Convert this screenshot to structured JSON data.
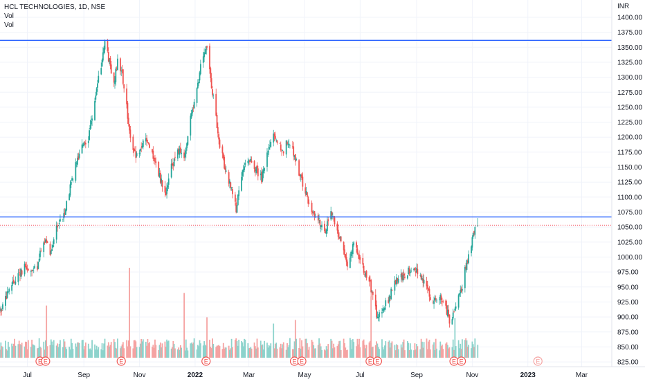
{
  "chart_data": {
    "type": "candlestick",
    "symbol": "HCL TECHNOLOGIES",
    "interval": "1D",
    "exchange": "NSE",
    "legend": [
      "HCL TECHNOLOGIES, 1D, NSE",
      "Vol",
      "Vol"
    ],
    "currency": "INR",
    "ylim": [
      817,
      1415
    ],
    "y_ticks": [
      825,
      850,
      875,
      900,
      925,
      950,
      975,
      1000,
      1025,
      1050,
      1075,
      1100,
      1125,
      1150,
      1175,
      1200,
      1225,
      1250,
      1275,
      1300,
      1325,
      1350,
      1375,
      1400
    ],
    "y_tick_labels": [
      "825.00",
      "850.00",
      "875.00",
      "900.00",
      "925.00",
      "950.00",
      "975.00",
      "1000.00",
      "1025.00",
      "1050.00",
      "1075.00",
      "1100.00",
      "1125.00",
      "1150.00",
      "1175.00",
      "1200.00",
      "1225.00",
      "1250.00",
      "1275.00",
      "1300.00",
      "1325.00",
      "1350.00",
      "1375.00",
      "1400.00"
    ],
    "x_range": [
      "2021-06-01",
      "2023-03-31"
    ],
    "x_ticks": [
      {
        "label": "Jul",
        "date": "2021-07-01",
        "bold": false
      },
      {
        "label": "Sep",
        "date": "2021-09-01",
        "bold": false
      },
      {
        "label": "Nov",
        "date": "2021-11-01",
        "bold": false
      },
      {
        "label": "2022",
        "date": "2022-01-01",
        "bold": true
      },
      {
        "label": "Mar",
        "date": "2022-03-01",
        "bold": false
      },
      {
        "label": "May",
        "date": "2022-05-01",
        "bold": false
      },
      {
        "label": "Jul",
        "date": "2022-07-01",
        "bold": false
      },
      {
        "label": "Sep",
        "date": "2022-09-01",
        "bold": false
      },
      {
        "label": "Nov",
        "date": "2022-11-01",
        "bold": false
      },
      {
        "label": "2023",
        "date": "2023-01-01",
        "bold": true
      },
      {
        "label": "Mar",
        "date": "2023-03-01",
        "bold": false
      }
    ],
    "horizontal_lines": [
      {
        "value": 1361.5,
        "label": "1361.50",
        "color": "#2962ff"
      },
      {
        "value": 1066.85,
        "label": "1066.85",
        "color": "#2962ff"
      }
    ],
    "last_price": {
      "value": 1053.25,
      "label": "1053.25",
      "color": "#f23645"
    },
    "earnings_markers": [
      {
        "date": "2021-07-15",
        "label": "E",
        "type": "past"
      },
      {
        "date": "2021-07-21",
        "label": "E",
        "type": "past"
      },
      {
        "date": "2021-10-12",
        "label": "E",
        "type": "past"
      },
      {
        "date": "2022-01-13",
        "label": "E",
        "type": "past"
      },
      {
        "date": "2022-04-20",
        "label": "E",
        "type": "past"
      },
      {
        "date": "2022-04-28",
        "label": "E",
        "type": "past"
      },
      {
        "date": "2022-07-12",
        "label": "E",
        "type": "past"
      },
      {
        "date": "2022-07-20",
        "label": "E",
        "type": "past"
      },
      {
        "date": "2022-10-12",
        "label": "E",
        "type": "past"
      },
      {
        "date": "2022-10-20",
        "label": "E",
        "type": "past"
      },
      {
        "date": "2023-01-12",
        "label": "E",
        "type": "upcoming"
      }
    ],
    "price_path": [
      [
        "2021-06-01",
        908
      ],
      [
        "2021-06-10",
        940
      ],
      [
        "2021-06-20",
        970
      ],
      [
        "2021-06-28",
        982
      ],
      [
        "2021-07-06",
        975
      ],
      [
        "2021-07-12",
        985
      ],
      [
        "2021-07-19",
        1030
      ],
      [
        "2021-07-26",
        1008
      ],
      [
        "2021-08-02",
        1050
      ],
      [
        "2021-08-09",
        1065
      ],
      [
        "2021-08-16",
        1110
      ],
      [
        "2021-08-23",
        1155
      ],
      [
        "2021-08-30",
        1185
      ],
      [
        "2021-09-06",
        1200
      ],
      [
        "2021-09-13",
        1265
      ],
      [
        "2021-09-20",
        1320
      ],
      [
        "2021-09-24",
        1362
      ],
      [
        "2021-09-28",
        1330
      ],
      [
        "2021-10-04",
        1290
      ],
      [
        "2021-10-08",
        1325
      ],
      [
        "2021-10-13",
        1305
      ],
      [
        "2021-10-18",
        1250
      ],
      [
        "2021-10-22",
        1200
      ],
      [
        "2021-10-28",
        1168
      ],
      [
        "2021-11-03",
        1185
      ],
      [
        "2021-11-10",
        1195
      ],
      [
        "2021-11-17",
        1160
      ],
      [
        "2021-11-24",
        1130
      ],
      [
        "2021-11-30",
        1105
      ],
      [
        "2021-12-06",
        1150
      ],
      [
        "2021-12-13",
        1180
      ],
      [
        "2021-12-20",
        1165
      ],
      [
        "2021-12-27",
        1230
      ],
      [
        "2022-01-03",
        1275
      ],
      [
        "2022-01-07",
        1320
      ],
      [
        "2022-01-11",
        1345
      ],
      [
        "2022-01-14",
        1352
      ],
      [
        "2022-01-17",
        1310
      ],
      [
        "2022-01-21",
        1265
      ],
      [
        "2022-01-27",
        1195
      ],
      [
        "2022-02-03",
        1145
      ],
      [
        "2022-02-10",
        1115
      ],
      [
        "2022-02-15",
        1080
      ],
      [
        "2022-02-22",
        1140
      ],
      [
        "2022-03-01",
        1165
      ],
      [
        "2022-03-08",
        1150
      ],
      [
        "2022-03-15",
        1130
      ],
      [
        "2022-03-22",
        1175
      ],
      [
        "2022-03-29",
        1205
      ],
      [
        "2022-04-04",
        1185
      ],
      [
        "2022-04-08",
        1178
      ],
      [
        "2022-04-13",
        1195
      ],
      [
        "2022-04-19",
        1175
      ],
      [
        "2022-04-25",
        1140
      ],
      [
        "2022-05-02",
        1108
      ],
      [
        "2022-05-09",
        1078
      ],
      [
        "2022-05-16",
        1065
      ],
      [
        "2022-05-23",
        1040
      ],
      [
        "2022-05-30",
        1075
      ],
      [
        "2022-06-06",
        1045
      ],
      [
        "2022-06-13",
        1008
      ],
      [
        "2022-06-17",
        990
      ],
      [
        "2022-06-24",
        1020
      ],
      [
        "2022-07-01",
        1000
      ],
      [
        "2022-07-06",
        975
      ],
      [
        "2022-07-11",
        960
      ],
      [
        "2022-07-15",
        935
      ],
      [
        "2022-07-20",
        898
      ],
      [
        "2022-07-25",
        915
      ],
      [
        "2022-08-01",
        928
      ],
      [
        "2022-08-08",
        958
      ],
      [
        "2022-08-15",
        965
      ],
      [
        "2022-08-22",
        975
      ],
      [
        "2022-08-29",
        985
      ],
      [
        "2022-09-05",
        968
      ],
      [
        "2022-09-12",
        948
      ],
      [
        "2022-09-19",
        925
      ],
      [
        "2022-09-26",
        935
      ],
      [
        "2022-10-03",
        915
      ],
      [
        "2022-10-07",
        895
      ],
      [
        "2022-10-12",
        905
      ],
      [
        "2022-10-17",
        930
      ],
      [
        "2022-10-21",
        950
      ],
      [
        "2022-10-25",
        985
      ],
      [
        "2022-10-31",
        1020
      ],
      [
        "2022-11-03",
        1040
      ],
      [
        "2022-11-07",
        1053.25
      ]
    ],
    "volume_peaks": [
      [
        "2021-10-21",
        1.0
      ],
      [
        "2021-07-22",
        0.58
      ],
      [
        "2021-12-20",
        0.72
      ],
      [
        "2022-01-14",
        0.45
      ],
      [
        "2022-07-13",
        0.68
      ],
      [
        "2022-10-13",
        0.44
      ],
      [
        "2022-04-21",
        0.42
      ],
      [
        "2022-03-28",
        0.38
      ]
    ]
  },
  "colors": {
    "up": "#26a69a",
    "down": "#ef5350",
    "up_volume": "#8dd3cc",
    "down_volume": "#f5a3a2",
    "grid": "#f0f3fa",
    "axis_text": "#131722",
    "line": "#2962ff",
    "last_price": "#f23645"
  }
}
